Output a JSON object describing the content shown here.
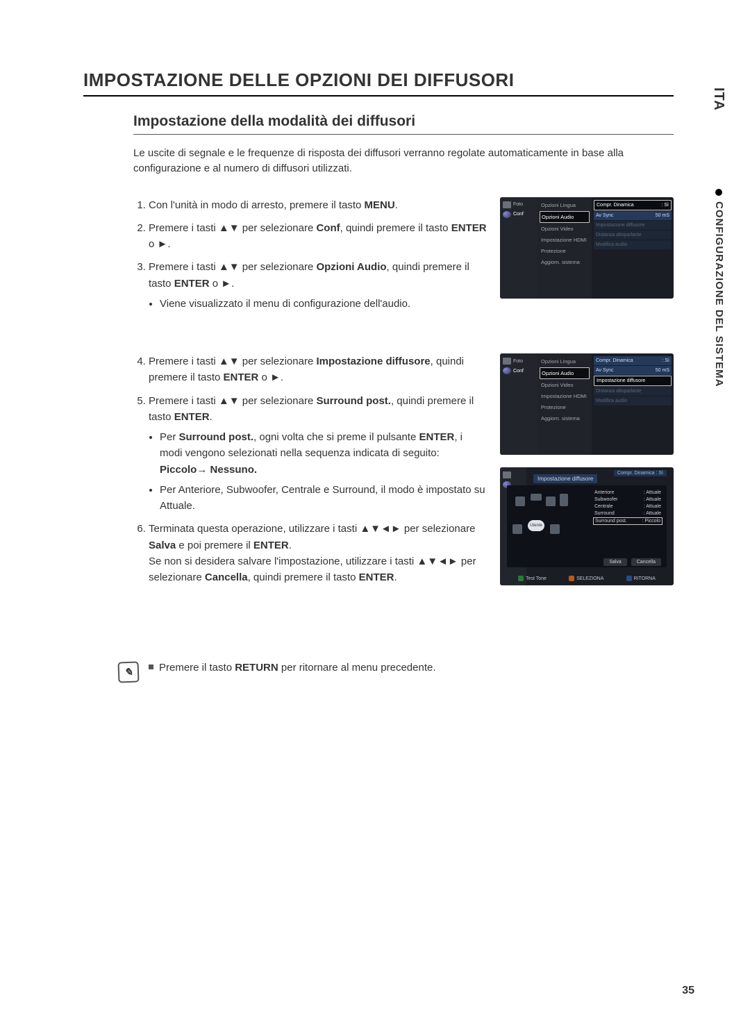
{
  "page": {
    "number": "35",
    "side_tab": "ITA",
    "side_section": "CONFIGURAZIONE DEL SISTEMA"
  },
  "title": "IMPOSTAZIONE DELLE OPZIONI DEI DIFFUSORI",
  "subtitle": "Impostazione della modalità dei diffusori",
  "intro": "Le uscite di segnale e le frequenze di risposta dei diffusori verranno regolate automaticamente in base alla configurazione e al numero di diffusori utilizzati.",
  "steps": {
    "s1": {
      "pre": "Con l'unità in modo di arresto, premere il tasto ",
      "b": "MENU",
      "post": "."
    },
    "s2": {
      "pre": "Premere i tasti ▲▼ per selezionare ",
      "b": "Conf",
      "mid": ", quindi premere il tasto ",
      "b2": "ENTER",
      "post": " o ►."
    },
    "s3": {
      "pre": "Premere i tasti ▲▼ per selezionare ",
      "b": "Opzioni Audio",
      "mid": ", quindi premere il tasto ",
      "b2": "ENTER",
      "post": " o ►."
    },
    "s3bullet": "Viene visualizzato il menu di configurazione dell'audio.",
    "s4": {
      "pre": "Premere i tasti ▲▼ per selezionare ",
      "b": "Impostazione diffusore",
      "mid": ", quindi premere il tasto ",
      "b2": "ENTER",
      "post": " o ►."
    },
    "s5": {
      "pre": "Premere i tasti ▲▼ per selezionare ",
      "b": "Surround post.",
      "mid": ", quindi premere il tasto ",
      "b2": "ENTER",
      "post": "."
    },
    "s5b1": {
      "pre": "Per ",
      "b": "Surround post.",
      "mid": ", ogni volta che si preme il pulsante ",
      "b2": "ENTER",
      "post": ", i modi vengono selezionati nella sequenza indicata di seguito:"
    },
    "s5seq": "Piccolo→ Nessuno.",
    "s5b2": "Per Anteriore, Subwoofer, Centrale e Surround, il modo è impostato su Attuale.",
    "s6": {
      "pre": "Terminata questa operazione, utilizzare i tasti ▲▼◄► per selezionare ",
      "b": "Salva",
      "mid": " e poi premere il ",
      "b2": "ENTER",
      "post": "."
    },
    "s6line2": {
      "pre": "Se non si desidera salvare l'impostazione, utilizzare i tasti ▲▼◄► per selezionare ",
      "b": "Cancella",
      "mid": ", quindi premere il tasto ",
      "b2": "ENTER",
      "post": "."
    }
  },
  "note": {
    "pre": "Premere il tasto ",
    "b": "RETURN",
    "post": " per ritornare al menu precedente."
  },
  "menus": {
    "left_items": [
      {
        "icon": "photo",
        "label": "Foto"
      },
      {
        "icon": "globe",
        "label": "Conf"
      }
    ],
    "mid_items": [
      "Opzioni Lingua",
      "Opzioni Audio",
      "Opzioni Video",
      "Impostazione HDMI",
      "Protezione",
      "Aggiorn. sistema"
    ],
    "shot1_right": [
      {
        "label": "Compr. Dinamica",
        "value": ": Sì",
        "state": "sel"
      },
      {
        "label": "Av Sync",
        "value": "50 mS",
        "state": "hi"
      },
      {
        "label": "Impostazione diffusore",
        "value": "",
        "state": "dim"
      },
      {
        "label": "Distanza altoparlante",
        "value": "",
        "state": "dim"
      },
      {
        "label": "Modifica audio",
        "value": "",
        "state": "dim"
      }
    ],
    "shot2_right": [
      {
        "label": "Compr. Dinamica",
        "value": ": Sì",
        "state": "hi"
      },
      {
        "label": "Av Sync",
        "value": "50 mS",
        "state": "hi"
      },
      {
        "label": "Impostazione diffusore",
        "value": "",
        "state": "sel"
      },
      {
        "label": "Distanza altoparlante",
        "value": "",
        "state": "dim"
      },
      {
        "label": "Modifica audio",
        "value": "",
        "state": "dim"
      }
    ],
    "shot3": {
      "top_right": {
        "label": "Compr. Dinamica",
        "value": ": Sì"
      },
      "title": "Impostazione diffusore",
      "listener": "Utente",
      "rows": [
        {
          "label": "Anteriore",
          "value": ": Attuale"
        },
        {
          "label": "Subwoofer",
          "value": ": Attuale"
        },
        {
          "label": "Centrale",
          "value": ": Attuale"
        },
        {
          "label": "Surround",
          "value": ": Attuale"
        },
        {
          "label": "Surround post.",
          "value": ": Piccolo",
          "sel": true
        }
      ],
      "buttons": {
        "save": "Salva",
        "cancel": "Cancella"
      },
      "footer": [
        {
          "color": "green",
          "label": "Test Tone"
        },
        {
          "color": "orange",
          "label": "SELEZIONA"
        },
        {
          "color": "blue",
          "label": "RITORNA"
        }
      ]
    }
  }
}
